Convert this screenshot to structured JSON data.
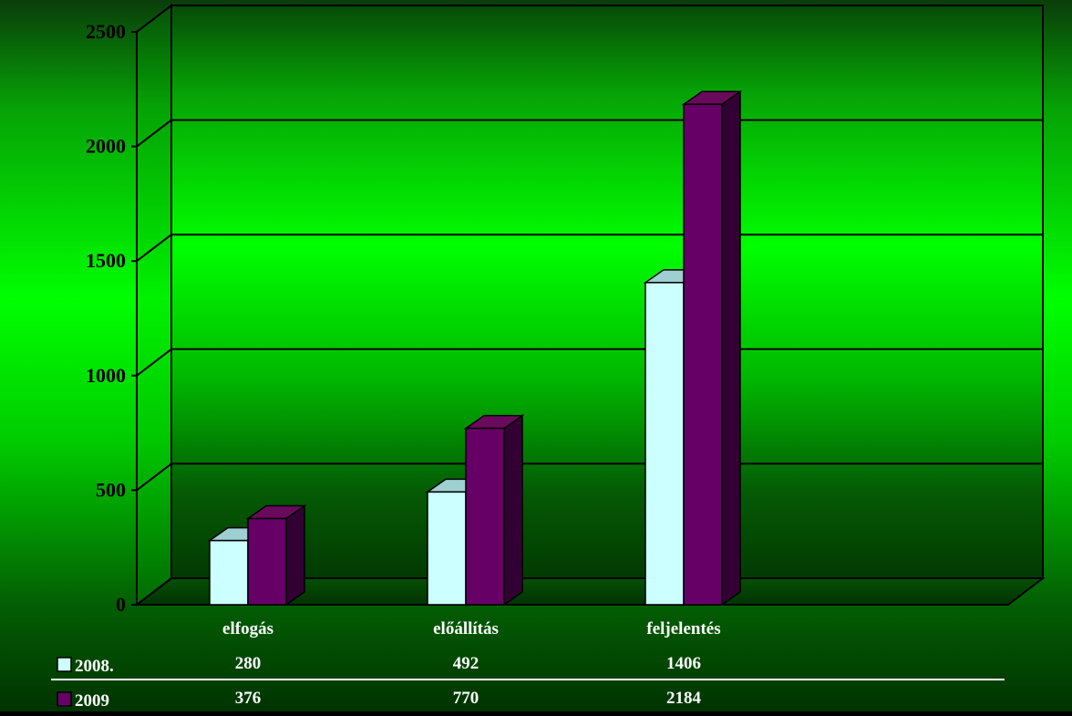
{
  "chart_data": {
    "type": "bar",
    "title": "",
    "xlabel": "",
    "ylabel": "",
    "categories": [
      "elfogás",
      "előállítás",
      "feljelentés"
    ],
    "series": [
      {
        "name": "2008.",
        "values": [
          280,
          492,
          1406
        ],
        "value_labels": [
          "280",
          "492",
          "1406"
        ],
        "color": "#ccffff",
        "top_color": "#9fcfd0",
        "side_color": "#8fb8b8"
      },
      {
        "name": "2009",
        "values": [
          376,
          770,
          2184
        ],
        "value_labels": [
          "376",
          "770",
          "2184"
        ],
        "color": "#660066",
        "top_color": "#6a0a5c",
        "side_color": "#330033"
      }
    ],
    "ylim": [
      0,
      2500
    ],
    "yticks": [
      0,
      500,
      1000,
      1500,
      2000,
      2500
    ],
    "ytick_labels": [
      "0",
      "500",
      "1000",
      "1500",
      "2000",
      "2500"
    ],
    "grid": true,
    "legend": "data-table-bottom",
    "colors": {
      "background_green": "#00ff00",
      "background_dark": "#003300",
      "grid": "#000000"
    }
  }
}
